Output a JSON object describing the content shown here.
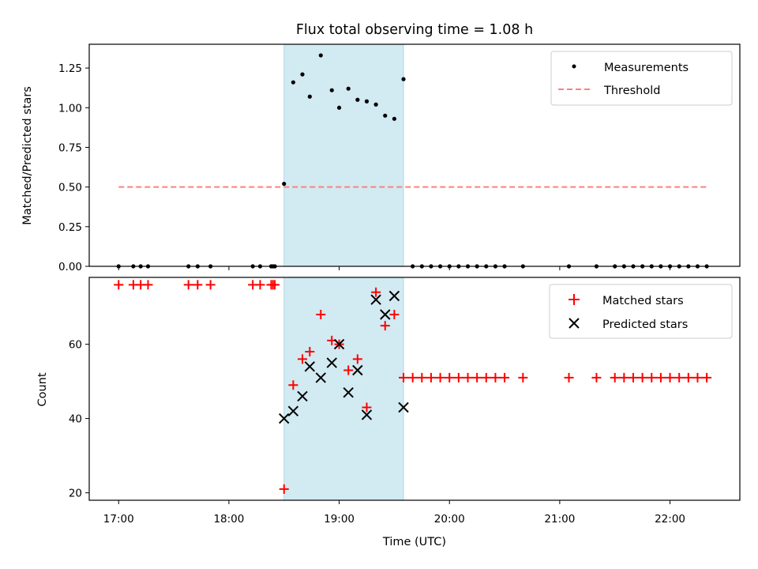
{
  "chart_data": [
    {
      "type": "scatter",
      "title": "Flux total observing time = 1.08 h",
      "xlabel": "",
      "ylabel": "Matched/Predicted stars",
      "xlim": [
        "16:44",
        "22:38"
      ],
      "ylim": [
        0,
        1.4
      ],
      "x_tick_labels": [
        "17:00",
        "18:00",
        "19:00",
        "20:00",
        "21:00",
        "22:00"
      ],
      "y_tick_labels": [
        "0.00",
        "0.25",
        "0.50",
        "0.75",
        "1.00",
        "1.25"
      ],
      "y_ticks": [
        0,
        0.25,
        0.5,
        0.75,
        1.0,
        1.25
      ],
      "highlight_span": {
        "start": "18:30",
        "end": "19:35",
        "color": "#add8e6"
      },
      "legend_position": "upper right",
      "series": [
        {
          "name": "Measurements",
          "kind": "points",
          "color": "#000000",
          "x": [
            "17:00",
            "17:08",
            "17:12",
            "17:16",
            "17:38",
            "17:43",
            "17:50",
            "18:13",
            "18:17",
            "18:23",
            "18:24",
            "18:25",
            "18:30",
            "18:35",
            "18:40",
            "18:44",
            "18:50",
            "18:56",
            "19:00",
            "19:05",
            "19:10",
            "19:15",
            "19:20",
            "19:25",
            "19:30",
            "19:35",
            "19:40",
            "19:45",
            "19:50",
            "19:55",
            "20:00",
            "20:05",
            "20:10",
            "20:15",
            "20:20",
            "20:25",
            "20:30",
            "20:40",
            "21:05",
            "21:20",
            "21:30",
            "21:35",
            "21:40",
            "21:45",
            "21:50",
            "21:55",
            "22:00",
            "22:05",
            "22:10",
            "22:15",
            "22:20"
          ],
          "y": [
            0,
            0,
            0,
            0,
            0,
            0,
            0,
            0,
            0,
            0,
            0,
            0,
            0.52,
            1.16,
            1.21,
            1.07,
            1.33,
            1.11,
            1.0,
            1.12,
            1.05,
            1.04,
            1.02,
            0.95,
            0.93,
            1.18,
            0,
            0,
            0,
            0,
            0,
            0,
            0,
            0,
            0,
            0,
            0,
            0,
            0,
            0,
            0,
            0,
            0,
            0,
            0,
            0,
            0,
            0,
            0,
            0,
            0
          ]
        },
        {
          "name": "Threshold",
          "kind": "dashed-line",
          "color": "#ff7f7f",
          "x": [
            "17:00",
            "22:20"
          ],
          "y": [
            0.5,
            0.5
          ]
        }
      ]
    },
    {
      "type": "scatter",
      "title": "",
      "xlabel": "Time (UTC)",
      "ylabel": "Count",
      "xlim": [
        "16:44",
        "22:38"
      ],
      "ylim": [
        18,
        78
      ],
      "x_tick_labels": [
        "17:00",
        "18:00",
        "19:00",
        "20:00",
        "21:00",
        "22:00"
      ],
      "y_tick_labels": [
        "20",
        "40",
        "60"
      ],
      "y_ticks": [
        20,
        40,
        60
      ],
      "highlight_span": {
        "start": "18:30",
        "end": "19:35",
        "color": "#add8e6"
      },
      "legend_position": "upper right",
      "series": [
        {
          "name": "Matched stars",
          "kind": "plus",
          "color": "#ff0000",
          "x": [
            "17:00",
            "17:08",
            "17:12",
            "17:16",
            "17:38",
            "17:43",
            "17:50",
            "18:13",
            "18:17",
            "18:23",
            "18:24",
            "18:25",
            "18:30",
            "18:35",
            "18:40",
            "18:44",
            "18:50",
            "18:56",
            "19:00",
            "19:05",
            "19:10",
            "19:15",
            "19:20",
            "19:25",
            "19:30",
            "19:35",
            "19:40",
            "19:45",
            "19:50",
            "19:55",
            "20:00",
            "20:05",
            "20:10",
            "20:15",
            "20:20",
            "20:25",
            "20:30",
            "20:40",
            "21:05",
            "21:20",
            "21:30",
            "21:35",
            "21:40",
            "21:45",
            "21:50",
            "21:55",
            "22:00",
            "22:05",
            "22:10",
            "22:15",
            "22:20"
          ],
          "y": [
            76,
            76,
            76,
            76,
            76,
            76,
            76,
            76,
            76,
            76,
            76,
            76,
            21,
            49,
            56,
            58,
            68,
            61,
            60,
            53,
            56,
            43,
            74,
            65,
            68,
            51,
            51,
            51,
            51,
            51,
            51,
            51,
            51,
            51,
            51,
            51,
            51,
            51,
            51,
            51,
            51,
            51,
            51,
            51,
            51,
            51,
            51,
            51,
            51,
            51,
            51
          ]
        },
        {
          "name": "Predicted stars",
          "kind": "x",
          "color": "#000000",
          "x": [
            "18:30",
            "18:35",
            "18:40",
            "18:44",
            "18:50",
            "18:56",
            "19:00",
            "19:05",
            "19:10",
            "19:15",
            "19:20",
            "19:25",
            "19:30",
            "19:35"
          ],
          "y": [
            40,
            42,
            46,
            54,
            51,
            55,
            60,
            47,
            53,
            41,
            72,
            68,
            73,
            43
          ]
        }
      ]
    }
  ]
}
